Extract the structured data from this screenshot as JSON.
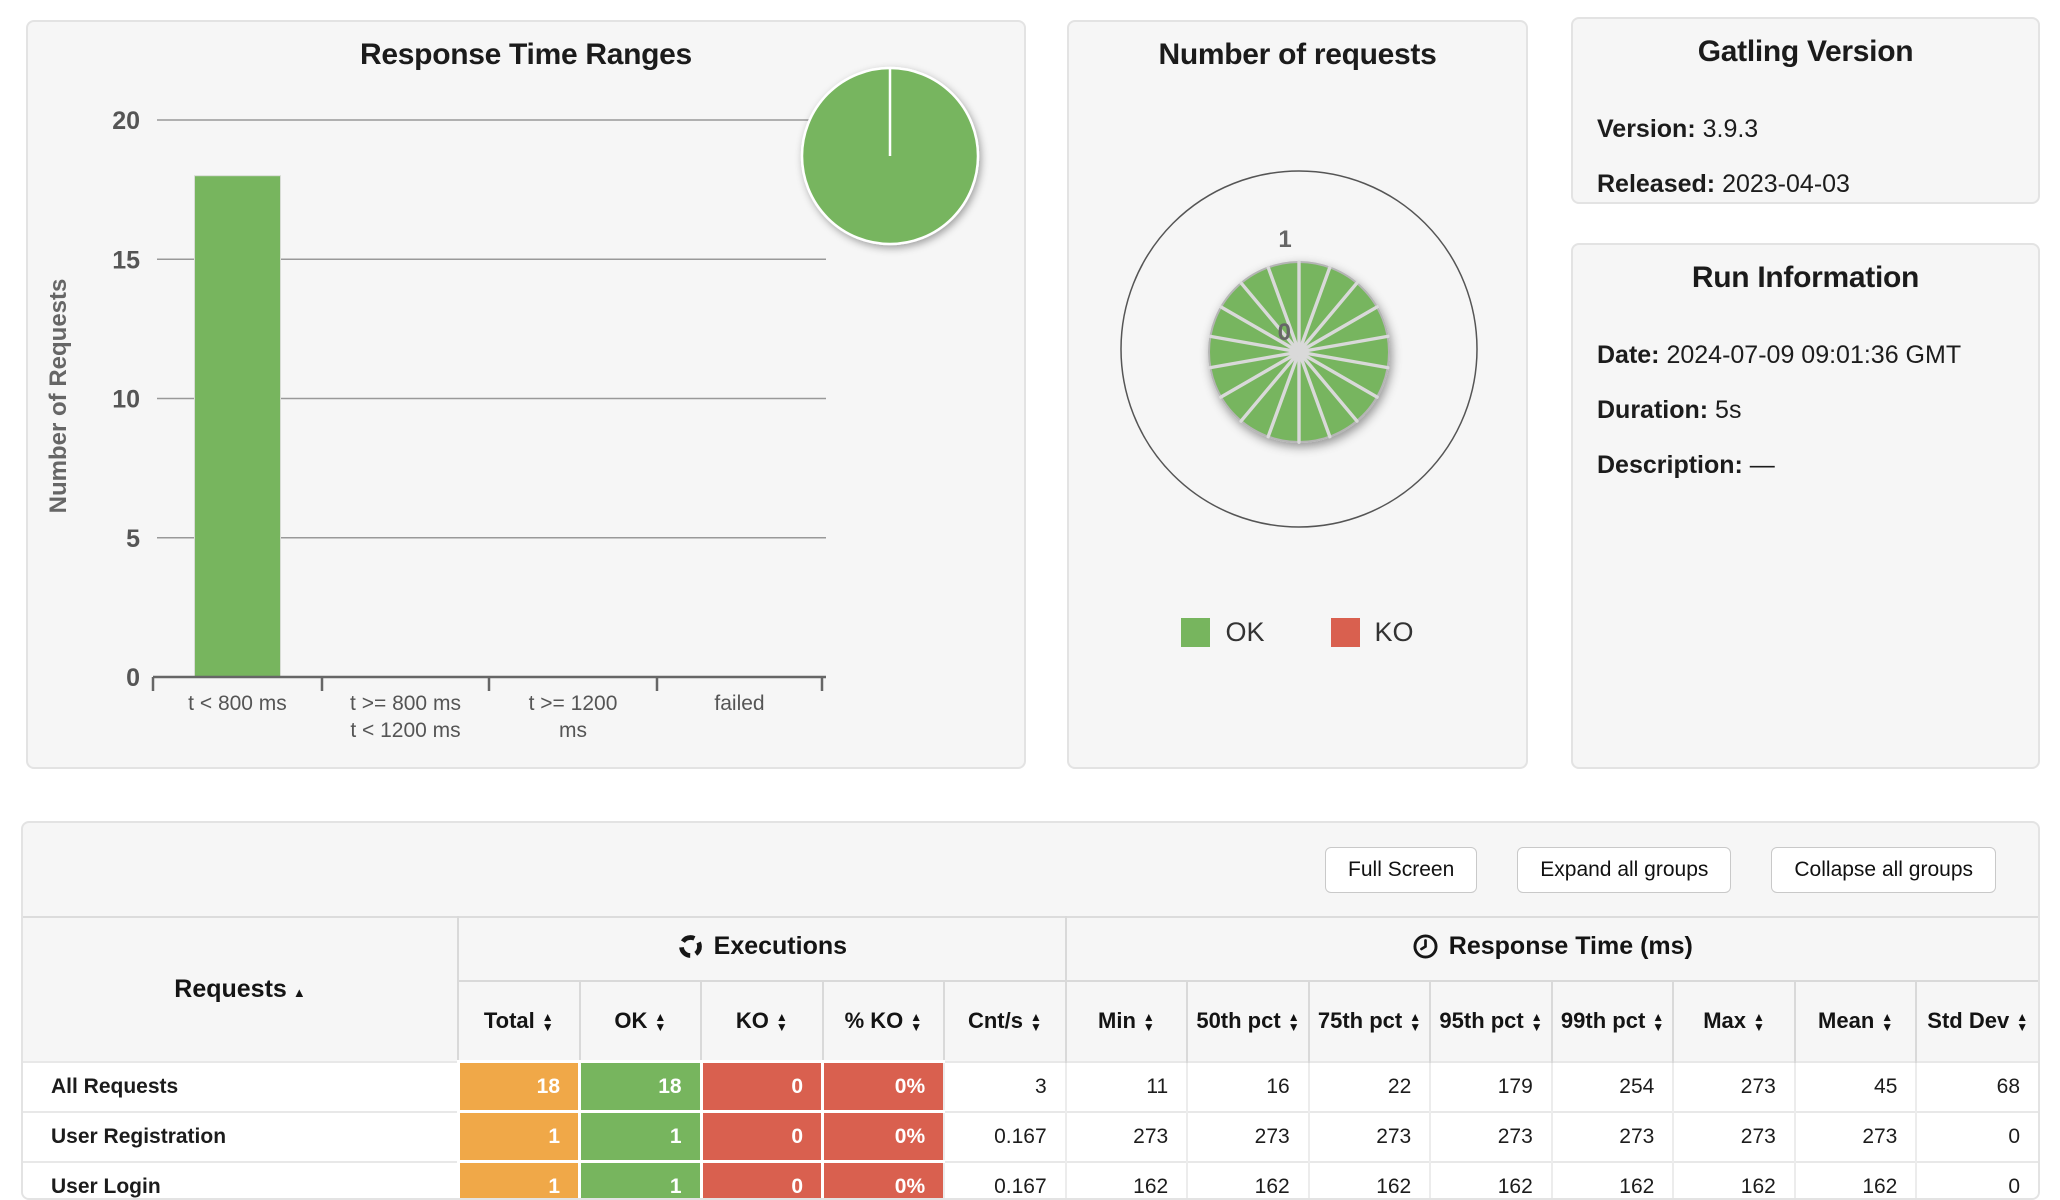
{
  "colors": {
    "green": "#77b55e",
    "red": "#d9604f",
    "orange": "#f0a848",
    "panel_bg": "#f6f6f6",
    "grid": "#999999",
    "axis_text": "#666666"
  },
  "response_time_ranges": {
    "title": "Response Time Ranges",
    "ylabel": "Number of Requests",
    "yticks": [
      0,
      5,
      10,
      15,
      20
    ],
    "ymax": 20,
    "categories": [
      "t < 800 ms",
      "t >= 800 ms\nt < 1200 ms",
      "t >= 1200\nms",
      "failed"
    ],
    "values": [
      18,
      0,
      0,
      0
    ]
  },
  "number_of_requests": {
    "title": "Number of requests",
    "axis_tick_outer": "1",
    "axis_tick_center": "0",
    "slice_count": 18,
    "legend": [
      {
        "label": "OK",
        "color": "#77b55e"
      },
      {
        "label": "KO",
        "color": "#d9604f"
      }
    ]
  },
  "gatling_version": {
    "title": "Gatling Version",
    "rows": [
      {
        "label": "Version:",
        "value": "3.9.3"
      },
      {
        "label": "Released:",
        "value": "2023-04-03"
      }
    ]
  },
  "run_information": {
    "title": "Run Information",
    "rows": [
      {
        "label": "Date:",
        "value": "2024-07-09 09:01:36 GMT"
      },
      {
        "label": "Duration:",
        "value": "5s"
      },
      {
        "label": "Description:",
        "value": "—"
      }
    ]
  },
  "stats": {
    "buttons": [
      {
        "label": "Full Screen",
        "name": "full-screen-button"
      },
      {
        "label": "Expand all groups",
        "name": "expand-all-groups-button"
      },
      {
        "label": "Collapse all groups",
        "name": "collapse-all-groups-button"
      }
    ],
    "requests_header": "Requests",
    "groups": [
      {
        "label": "Executions",
        "icon": "executions-cycle-icon",
        "span": 5
      },
      {
        "label": "Response Time (ms)",
        "icon": "response-time-clock-icon",
        "span": 8
      }
    ],
    "columns": [
      "Total",
      "OK",
      "KO",
      "% KO",
      "Cnt/s",
      "Min",
      "50th pct",
      "75th pct",
      "95th pct",
      "99th pct",
      "Max",
      "Mean",
      "Std Dev"
    ],
    "rows": [
      {
        "name": "All Requests",
        "cells": [
          "18",
          "18",
          "0",
          "0%",
          "3",
          "11",
          "16",
          "22",
          "179",
          "254",
          "273",
          "45",
          "68"
        ]
      },
      {
        "name": "User Registration",
        "cells": [
          "1",
          "1",
          "0",
          "0%",
          "0.167",
          "273",
          "273",
          "273",
          "273",
          "273",
          "273",
          "273",
          "0"
        ]
      },
      {
        "name": "User Login",
        "cells": [
          "1",
          "1",
          "0",
          "0%",
          "0.167",
          "162",
          "162",
          "162",
          "162",
          "162",
          "162",
          "162",
          "0"
        ]
      }
    ]
  },
  "chart_data": [
    {
      "type": "bar",
      "title": "Response Time Ranges",
      "xlabel": "",
      "ylabel": "Number of Requests",
      "categories": [
        "t < 800 ms",
        "t >= 800 ms, t < 1200 ms",
        "t >= 1200 ms",
        "failed"
      ],
      "values": [
        18,
        0,
        0,
        0
      ],
      "ylim": [
        0,
        20
      ],
      "grid": true,
      "bar_color": "#77b55e",
      "overlay_pie": {
        "slices": [
          {
            "label": "t < 800 ms",
            "value": 18
          }
        ],
        "colors": [
          "#77b55e"
        ]
      }
    },
    {
      "type": "pie",
      "title": "Number of requests",
      "slice_count": 18,
      "slice_value": 1,
      "series_status": "OK",
      "radial_axis_ticks": [
        "0",
        "1"
      ],
      "legend_entries": [
        "OK",
        "KO"
      ],
      "legend_position": "bottom",
      "colors": {
        "OK": "#77b55e",
        "KO": "#d9604f"
      }
    }
  ]
}
